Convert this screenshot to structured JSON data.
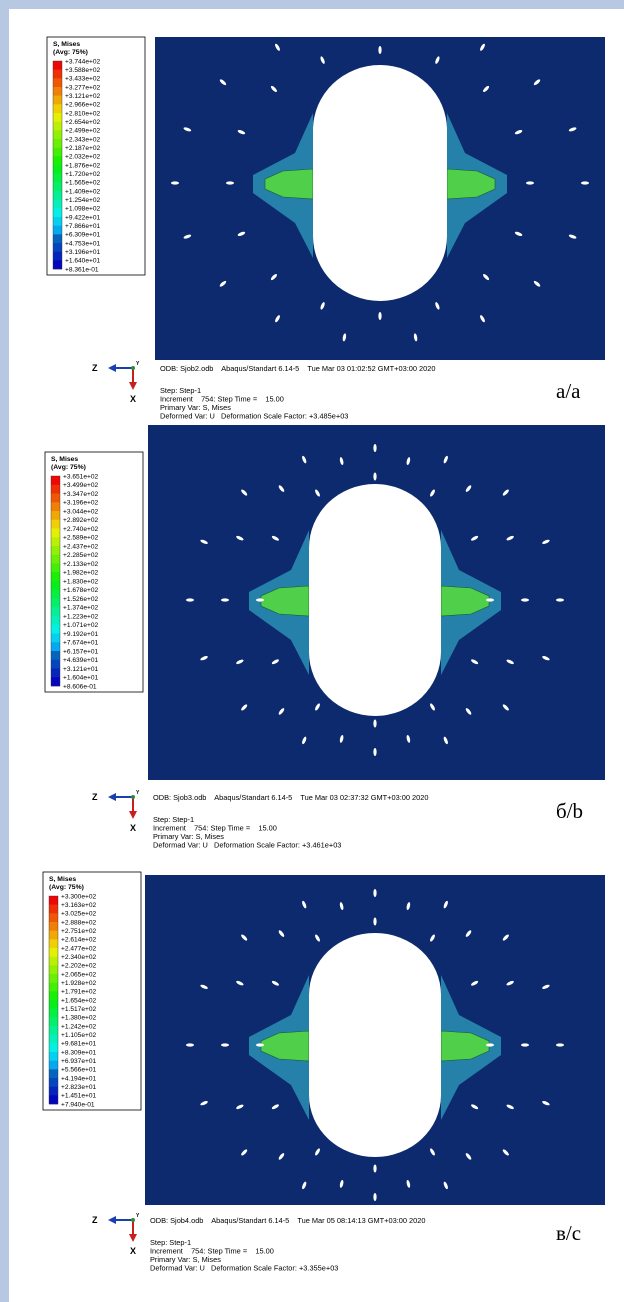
{
  "panels": [
    {
      "legend_title": "S, Mises",
      "legend_avg": "(Avg: 75%)",
      "legend_values": [
        "+3.744e+02",
        "+3.588e+02",
        "+3.433e+02",
        "+3.277e+02",
        "+3.121e+02",
        "+2.966e+02",
        "+2.810e+02",
        "+2.654e+02",
        "+2.499e+02",
        "+2.343e+02",
        "+2.187e+02",
        "+2.032e+02",
        "+1.876e+02",
        "+1.720e+02",
        "+1.565e+02",
        "+1.409e+02",
        "+1.254e+02",
        "+1.098e+02",
        "+9.422e+01",
        "+7.866e+01",
        "+6.309e+01",
        "+4.753e+01",
        "+3.196e+01",
        "+1.640e+01",
        "+8.361e-01"
      ],
      "triad": [
        "Z",
        "Y",
        "X"
      ],
      "odb_line": "ODB: Sjob2.odb    Abaqus/Standart 6.14-5    Tue Mar 03 01:02:52 GMT+03:00 2020",
      "label": "а/a",
      "step_lines": [
        "Step: Step-1",
        "Increment    754: Step Time =    15.00",
        "Primary Var: S, Mises",
        "Deformed Var: U   Deformation Scale Factor: +3.485e+03"
      ]
    },
    {
      "legend_title": "S, Mises",
      "legend_avg": "(Avg: 75%)",
      "legend_values": [
        "+3.651e+02",
        "+3.499e+02",
        "+3.347e+02",
        "+3.196e+02",
        "+3.044e+02",
        "+2.892e+02",
        "+2.740e+02",
        "+2.589e+02",
        "+2.437e+02",
        "+2.285e+02",
        "+2.133e+02",
        "+1.982e+02",
        "+1.830e+02",
        "+1.678e+02",
        "+1.526e+02",
        "+1.374e+02",
        "+1.223e+02",
        "+1.071e+02",
        "+9.192e+01",
        "+7.674e+01",
        "+6.157e+01",
        "+4.639e+01",
        "+3.121e+01",
        "+1.604e+01",
        "+8.606e-01"
      ],
      "triad": [
        "Z",
        "Y",
        "X"
      ],
      "odb_line": "ODB: Sjob3.odb    Abaqus/Standart 6.14-5    Tue Mar 03 02:37:32 GMT+03:00 2020",
      "label": "б/b",
      "step_lines": [
        "Step: Step-1",
        "Increment    754: Step Time =    15.00",
        "Primary Var: S, Mises",
        "Deformad Var: U   Deformation Scale Factor: +3.461e+03"
      ]
    },
    {
      "legend_title": "S, Mises",
      "legend_avg": "(Avg: 75%)",
      "legend_values": [
        "+3.300e+02",
        "+3.163e+02",
        "+3.025e+02",
        "+2.888e+02",
        "+2.751e+02",
        "+2.614e+02",
        "+2.477e+02",
        "+2.340e+02",
        "+2.202e+02",
        "+2.065e+02",
        "+1.928e+02",
        "+1.791e+02",
        "+1.654e+02",
        "+1.517e+02",
        "+1.380e+02",
        "+1.242e+02",
        "+1.105e+02",
        "+9.681e+01",
        "+8.309e+01",
        "+6.937e+01",
        "+5.566e+01",
        "+4.194e+01",
        "+2.823e+01",
        "+1.451e+01",
        "+7.940e-01"
      ],
      "triad": [
        "Z",
        "Y",
        "X"
      ],
      "odb_line": "ODB: Sjob4.odb    Abaqus/Standart 6.14-5    Tue Mar 05 08:14:13 GMT+03:00 2020",
      "label": "в/c",
      "step_lines": [
        "Step: Step-1",
        "Increment    754: Step Time =    15.00",
        "Primary Var: S, Mises",
        "Deformad Var: U   Deformation Scale Factor: +3.355e+03"
      ]
    }
  ]
}
